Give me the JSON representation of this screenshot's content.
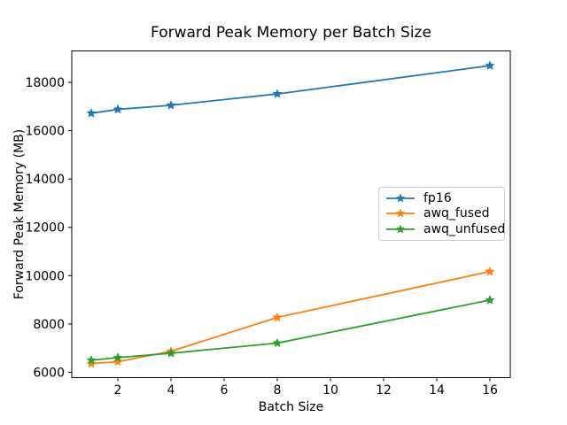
{
  "figure": {
    "background": "#ffffff",
    "frame_color": "#000000",
    "legend_border_color": "#cccccc"
  },
  "chart_data": {
    "type": "line",
    "title": "Forward Peak Memory per Batch Size",
    "xlabel": "Batch Size",
    "ylabel": "Forward Peak Memory (MB)",
    "x": [
      1,
      2,
      4,
      8,
      16
    ],
    "series": [
      {
        "name": "fp16",
        "color": "#1f77b4",
        "marker": "star",
        "values": [
          16720,
          16880,
          17050,
          17520,
          18690
        ]
      },
      {
        "name": "awq_fused",
        "color": "#ff7f0e",
        "marker": "star",
        "values": [
          6360,
          6440,
          6870,
          8270,
          10170
        ]
      },
      {
        "name": "awq_unfused",
        "color": "#2ca02c",
        "marker": "star",
        "values": [
          6500,
          6610,
          6790,
          7210,
          8990
        ]
      }
    ],
    "x_ticks": [
      2,
      4,
      6,
      8,
      10,
      12,
      14,
      16
    ],
    "y_ticks": [
      6000,
      8000,
      10000,
      12000,
      14000,
      16000,
      18000
    ],
    "xlim": [
      0.2667,
      16.7667
    ],
    "ylim": [
      5780,
      19300
    ],
    "grid": false,
    "legend_position": "center right"
  }
}
